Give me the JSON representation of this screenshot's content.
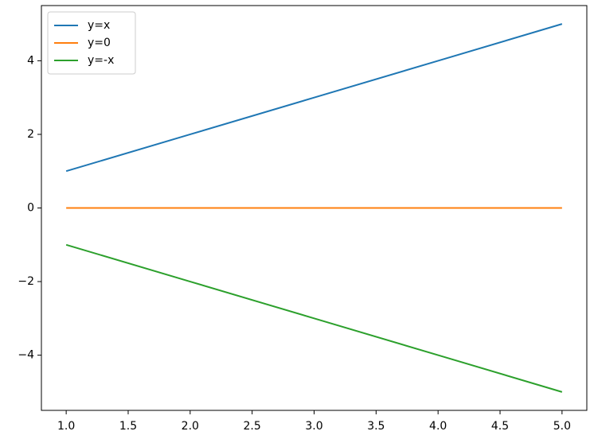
{
  "chart_data": {
    "type": "line",
    "x": [
      1,
      2,
      3,
      4,
      5
    ],
    "series": [
      {
        "name": "y=x",
        "color": "#1f77b4",
        "values": [
          1,
          2,
          3,
          4,
          5
        ]
      },
      {
        "name": "y=0",
        "color": "#ff7f0e",
        "values": [
          0,
          0,
          0,
          0,
          0
        ]
      },
      {
        "name": "y=-x",
        "color": "#2ca02c",
        "values": [
          -1,
          -2,
          -3,
          -4,
          -5
        ]
      }
    ],
    "xlim": [
      0.8,
      5.2
    ],
    "xticks": [
      {
        "value": 1,
        "label": "1.0"
      },
      {
        "value": 1.5,
        "label": "1.5"
      },
      {
        "value": 2,
        "label": "2.0"
      },
      {
        "value": 2.5,
        "label": "2.5"
      },
      {
        "value": 3,
        "label": "3.0"
      },
      {
        "value": 3.5,
        "label": "3.5"
      },
      {
        "value": 4,
        "label": "4.0"
      },
      {
        "value": 4.5,
        "label": "4.5"
      },
      {
        "value": 5,
        "label": "5.0"
      }
    ],
    "ylim": [
      -5.5,
      5.5
    ],
    "yticks": [
      {
        "value": -4,
        "label": "−4"
      },
      {
        "value": -2,
        "label": "−2"
      },
      0,
      2,
      4
    ],
    "grid": false,
    "legend": "upper-left"
  }
}
